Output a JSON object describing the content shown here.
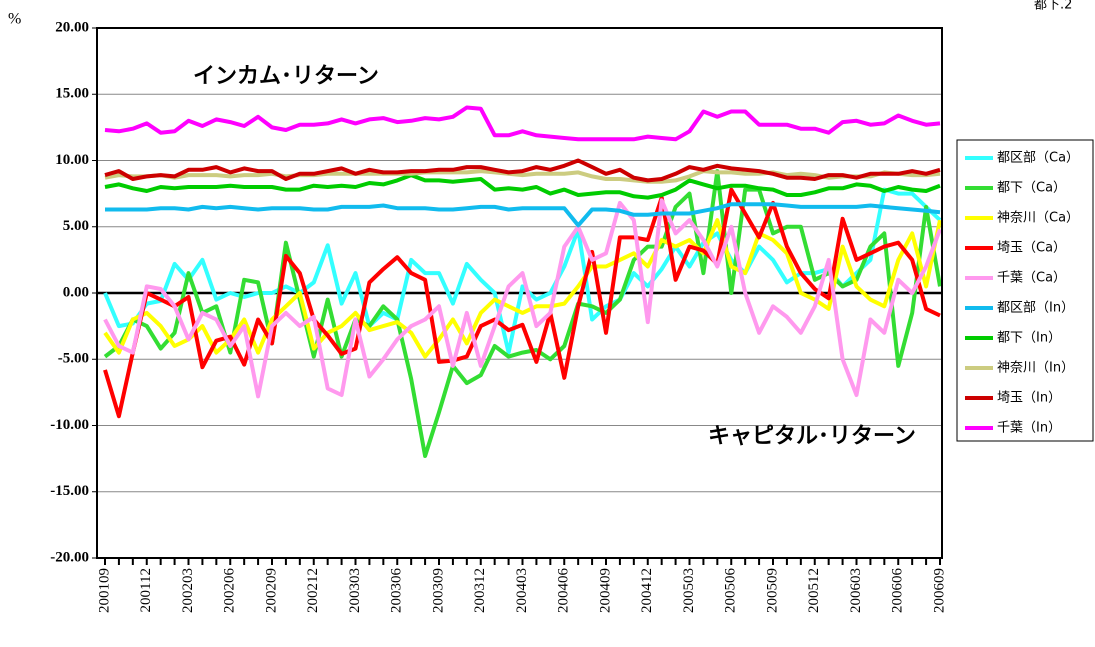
{
  "chart_data": {
    "type": "line",
    "corner_note": "都下.2",
    "y_label": "%",
    "annotations": [
      "インカム･リターン",
      "キャピタル･リターン"
    ],
    "categories": [
      "200109",
      null,
      null,
      "200112",
      null,
      null,
      "200203",
      null,
      null,
      "200206",
      null,
      null,
      "200209",
      null,
      null,
      "200212",
      null,
      null,
      "200303",
      null,
      null,
      "200306",
      null,
      null,
      "200309",
      null,
      null,
      "200312",
      null,
      null,
      "200403",
      null,
      null,
      "200406",
      null,
      null,
      "200409",
      null,
      null,
      "200412",
      null,
      null,
      "200503",
      null,
      null,
      "200506",
      null,
      null,
      "200509",
      null,
      null,
      "200512",
      null,
      null,
      "200603",
      null,
      null,
      "200606",
      null,
      null,
      "200609"
    ],
    "ylim": [
      -20,
      20
    ],
    "yticks": [
      {
        "value": 20,
        "label": "20.00"
      },
      {
        "value": 15,
        "label": "15.00"
      },
      {
        "value": 10,
        "label": "10.00"
      },
      {
        "value": 5,
        "label": "5.00"
      },
      {
        "value": 0,
        "label": "0.00"
      },
      {
        "value": -5,
        "label": "-5.00"
      },
      {
        "value": -10,
        "label": "-10.00"
      },
      {
        "value": -15,
        "label": "-15.00"
      },
      {
        "value": -20,
        "label": "-20.00"
      }
    ],
    "grid": true,
    "legend": "right",
    "series": [
      {
        "name": "都区部（Ca）",
        "color": "#33ffff",
        "values": [
          0.0,
          -2.5,
          -2.3,
          -0.8,
          -0.6,
          2.2,
          1.0,
          2.5,
          -0.5,
          0.0,
          -0.3,
          0.0,
          0.0,
          0.5,
          0.0,
          0.8,
          3.6,
          -0.8,
          1.5,
          -2.5,
          -1.5,
          -2.0,
          2.5,
          1.5,
          1.5,
          -0.8,
          2.2,
          1.0,
          0.0,
          -4.5,
          0.5,
          -0.5,
          0.0,
          2.0,
          4.8,
          -2.0,
          -1.0,
          -0.5,
          1.5,
          0.5,
          1.8,
          3.5,
          2.0,
          3.8,
          4.5,
          2.5,
          1.5,
          3.5,
          2.5,
          0.8,
          1.5,
          1.5,
          1.8,
          0.5,
          1.5,
          2.5,
          7.8,
          7.5,
          7.5,
          6.5,
          5.5
        ]
      },
      {
        "name": "都下（Ca）",
        "color": "#33dd33",
        "values": [
          -4.8,
          -4.0,
          -2.0,
          -2.5,
          -4.2,
          -3.0,
          1.5,
          -1.5,
          -1.0,
          -4.5,
          1.0,
          0.8,
          -3.8,
          3.8,
          -0.5,
          -4.8,
          -0.5,
          -4.8,
          -2.0,
          -2.5,
          -1.0,
          -2.0,
          -6.5,
          -12.3,
          -9.0,
          -5.5,
          -6.8,
          -6.2,
          -4.0,
          -4.8,
          -4.5,
          -4.3,
          -5.0,
          -4.0,
          -0.8,
          -1.0,
          -1.5,
          -0.5,
          2.5,
          3.5,
          3.5,
          6.5,
          7.5,
          1.5,
          9.2,
          0.0,
          7.8,
          7.8,
          4.5,
          5.0,
          5.0,
          1.0,
          1.5,
          0.5,
          1.0,
          3.5,
          4.5,
          -5.5,
          -1.5,
          6.5,
          0.5
        ]
      },
      {
        "name": "神奈川（Ca）",
        "color": "#ffff00",
        "values": [
          -3.0,
          -4.5,
          -2.0,
          -1.5,
          -2.5,
          -4.0,
          -3.5,
          -2.5,
          -4.5,
          -3.5,
          -2.0,
          -4.5,
          -2.0,
          -1.0,
          0.0,
          -4.2,
          -3.0,
          -2.5,
          -1.5,
          -2.8,
          -2.5,
          -2.2,
          -3.0,
          -4.8,
          -3.5,
          -2.0,
          -3.8,
          -1.5,
          -0.5,
          -1.0,
          -1.5,
          -1.0,
          -1.0,
          -0.8,
          0.5,
          2.0,
          2.0,
          2.5,
          3.0,
          2.0,
          4.0,
          3.5,
          4.0,
          3.0,
          5.5,
          2.0,
          1.5,
          4.5,
          4.0,
          3.0,
          0.0,
          -0.5,
          -1.2,
          3.5,
          0.5,
          -0.5,
          -1.0,
          2.5,
          4.5,
          0.5,
          5.5
        ]
      },
      {
        "name": "埼玉（Ca）",
        "color": "#ff0000",
        "values": [
          -5.8,
          -9.3,
          -4.5,
          0.0,
          -0.5,
          -1.0,
          -0.3,
          -5.6,
          -3.6,
          -3.3,
          -5.4,
          -2.0,
          -3.8,
          2.8,
          1.5,
          -2.0,
          -3.2,
          -4.6,
          -4.2,
          0.8,
          1.8,
          2.7,
          1.5,
          1.0,
          -5.2,
          -5.1,
          -4.8,
          -2.5,
          -2.0,
          -2.8,
          -2.4,
          -5.2,
          -1.5,
          -6.4,
          -1.0,
          3.1,
          -3.0,
          4.2,
          4.2,
          4.0,
          7.2,
          1.0,
          3.5,
          3.2,
          2.2,
          7.8,
          6.0,
          4.2,
          6.8,
          3.5,
          1.5,
          0.3,
          -0.4,
          5.6,
          2.5,
          3.0,
          3.5,
          3.8,
          2.5,
          -1.2,
          -1.7
        ]
      },
      {
        "name": "千葉（Ca）",
        "color": "#ff99ee",
        "values": [
          -2.0,
          -4.0,
          -4.5,
          0.5,
          0.3,
          -1.0,
          -3.5,
          -1.5,
          -2.0,
          -4.0,
          -2.5,
          -7.8,
          -2.5,
          -1.5,
          -2.5,
          -1.8,
          -7.2,
          -7.7,
          -2.0,
          -6.3,
          -5.0,
          -3.5,
          -2.5,
          -2.0,
          -1.0,
          -5.5,
          -1.5,
          -5.5,
          -2.5,
          0.5,
          1.5,
          -2.5,
          -1.5,
          3.5,
          5.0,
          2.5,
          3.0,
          6.8,
          5.5,
          -2.2,
          7.0,
          4.5,
          5.5,
          4.0,
          2.0,
          5.0,
          0.0,
          -3.0,
          -1.0,
          -1.8,
          -3.0,
          -1.0,
          2.5,
          -5.0,
          -7.7,
          -2.0,
          -3.0,
          1.0,
          0.0,
          2.0,
          4.8
        ]
      },
      {
        "name": "都区部（In）",
        "color": "#11bbee",
        "values": [
          6.3,
          6.3,
          6.3,
          6.3,
          6.4,
          6.4,
          6.3,
          6.5,
          6.4,
          6.5,
          6.4,
          6.3,
          6.4,
          6.4,
          6.4,
          6.3,
          6.3,
          6.5,
          6.5,
          6.5,
          6.6,
          6.4,
          6.4,
          6.4,
          6.3,
          6.3,
          6.4,
          6.5,
          6.5,
          6.3,
          6.4,
          6.4,
          6.4,
          6.4,
          5.1,
          6.3,
          6.3,
          6.2,
          5.9,
          5.9,
          6.0,
          6.0,
          6.0,
          6.2,
          6.4,
          6.7,
          6.7,
          6.7,
          6.7,
          6.6,
          6.5,
          6.5,
          6.5,
          6.5,
          6.5,
          6.6,
          6.5,
          6.4,
          6.3,
          6.2,
          6.1
        ]
      },
      {
        "name": "都下（In）",
        "color": "#00cc00",
        "values": [
          8.0,
          8.2,
          7.9,
          7.7,
          8.0,
          7.9,
          8.0,
          8.0,
          8.0,
          8.1,
          8.0,
          8.0,
          8.0,
          7.8,
          7.8,
          8.1,
          8.0,
          8.1,
          8.0,
          8.3,
          8.2,
          8.5,
          8.9,
          8.5,
          8.5,
          8.4,
          8.5,
          8.6,
          7.8,
          7.9,
          7.8,
          8.0,
          7.5,
          7.8,
          7.4,
          7.5,
          7.6,
          7.6,
          7.3,
          7.2,
          7.4,
          7.8,
          8.5,
          8.2,
          7.9,
          8.1,
          8.1,
          7.9,
          7.8,
          7.4,
          7.4,
          7.6,
          7.9,
          7.9,
          8.2,
          8.1,
          7.7,
          8.0,
          7.8,
          7.7,
          8.1
        ]
      },
      {
        "name": "神奈川（In）",
        "color": "#cccc80",
        "values": [
          8.7,
          8.9,
          8.8,
          8.8,
          8.9,
          8.7,
          8.9,
          8.9,
          8.9,
          8.8,
          8.9,
          8.9,
          9.0,
          8.8,
          8.9,
          8.9,
          9.0,
          9.0,
          9.0,
          9.0,
          9.0,
          9.0,
          9.0,
          9.1,
          9.1,
          9.1,
          9.1,
          9.2,
          9.1,
          9.0,
          8.9,
          9.0,
          9.0,
          9.0,
          9.1,
          8.8,
          8.6,
          8.6,
          8.5,
          8.4,
          8.4,
          8.5,
          8.8,
          9.2,
          9.1,
          9.1,
          9.0,
          9.0,
          9.1,
          8.9,
          9.0,
          8.9,
          8.7,
          8.8,
          8.8,
          8.8,
          9.1,
          9.0,
          8.9,
          8.9,
          9.0
        ]
      },
      {
        "name": "埼玉（In）",
        "color": "#cc0000",
        "values": [
          8.9,
          9.2,
          8.6,
          8.8,
          8.9,
          8.8,
          9.3,
          9.3,
          9.5,
          9.1,
          9.4,
          9.2,
          9.2,
          8.6,
          9.0,
          9.0,
          9.2,
          9.4,
          9.0,
          9.3,
          9.1,
          9.1,
          9.2,
          9.2,
          9.3,
          9.3,
          9.5,
          9.5,
          9.3,
          9.1,
          9.2,
          9.5,
          9.3,
          9.6,
          10.0,
          9.5,
          9.0,
          9.3,
          8.7,
          8.5,
          8.6,
          9.0,
          9.5,
          9.3,
          9.6,
          9.4,
          9.3,
          9.2,
          9.0,
          8.7,
          8.7,
          8.6,
          8.9,
          8.9,
          8.7,
          9.0,
          9.0,
          9.0,
          9.2,
          9.0,
          9.3
        ]
      },
      {
        "name": "千葉（In）",
        "color": "#ff00ff",
        "values": [
          12.3,
          12.2,
          12.4,
          12.8,
          12.1,
          12.2,
          13.0,
          12.6,
          13.1,
          12.9,
          12.6,
          13.3,
          12.5,
          12.3,
          12.7,
          12.7,
          12.8,
          13.1,
          12.8,
          13.1,
          13.2,
          12.9,
          13.0,
          13.2,
          13.1,
          13.3,
          14.0,
          13.9,
          11.9,
          11.9,
          12.2,
          11.9,
          11.8,
          11.7,
          11.6,
          11.6,
          11.6,
          11.6,
          11.6,
          11.8,
          11.7,
          11.6,
          12.2,
          13.7,
          13.3,
          13.7,
          13.7,
          12.7,
          12.7,
          12.7,
          12.4,
          12.4,
          12.1,
          12.9,
          13.0,
          12.7,
          12.8,
          13.4,
          13.0,
          12.7,
          12.8
        ]
      }
    ]
  }
}
